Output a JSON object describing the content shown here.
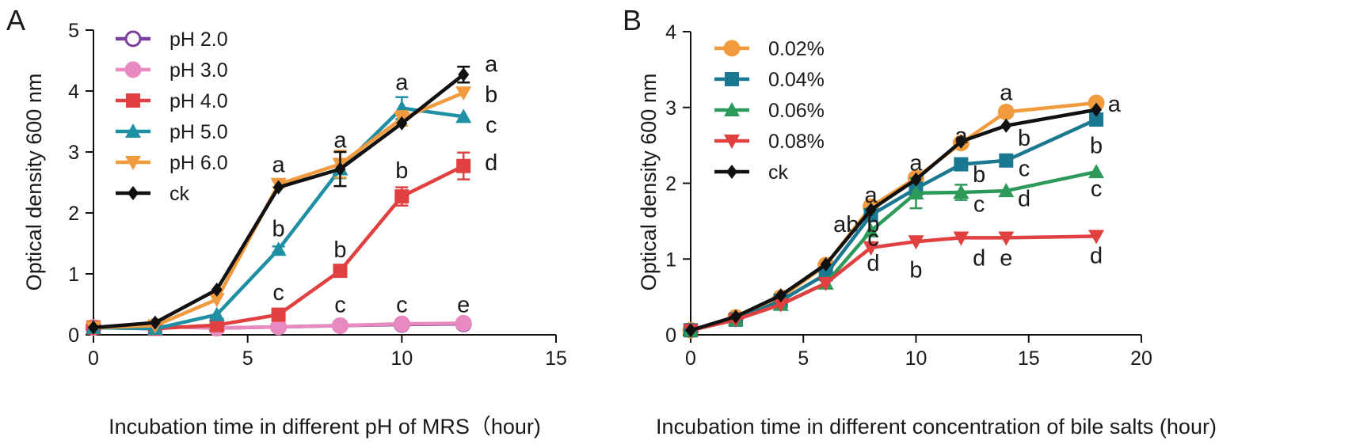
{
  "chart_data": [
    {
      "type": "line",
      "panel_label": "A",
      "xlabel": "Incubation time in different pH of MRS（hour)",
      "ylabel": "Optical density 600 nm",
      "xlim": [
        0,
        15
      ],
      "ylim": [
        0,
        5
      ],
      "xticks": [
        "0",
        "5",
        "10",
        "15"
      ],
      "yticks": [
        "0",
        "1",
        "2",
        "3",
        "4",
        "5"
      ],
      "x": [
        0,
        2,
        4,
        6,
        8,
        10,
        12
      ],
      "series": [
        {
          "name": "pH 2.0",
          "color": "#7b3f9e",
          "marker": "circle-open",
          "values": [
            0.12,
            0.14,
            0.11,
            0.13,
            0.15,
            0.17,
            0.18
          ],
          "errors": [
            0,
            0,
            0,
            0,
            0,
            0,
            0
          ]
        },
        {
          "name": "pH 3.0",
          "color": "#e889c0",
          "marker": "circle",
          "values": [
            0.12,
            0.14,
            0.11,
            0.13,
            0.15,
            0.18,
            0.19
          ],
          "errors": [
            0,
            0,
            0,
            0,
            0,
            0,
            0
          ]
        },
        {
          "name": "pH 4.0",
          "color": "#e04040",
          "marker": "square",
          "values": [
            0.12,
            0.1,
            0.16,
            0.33,
            1.05,
            2.27,
            2.77
          ],
          "errors": [
            0,
            0,
            0,
            0.05,
            0.05,
            0.15,
            0.22
          ]
        },
        {
          "name": "pH 5.0",
          "color": "#1f8fa3",
          "marker": "triangle-up",
          "values": [
            0.12,
            0.1,
            0.33,
            1.4,
            2.72,
            3.72,
            3.58
          ],
          "errors": [
            0,
            0,
            0,
            0.05,
            0.15,
            0.18,
            0
          ]
        },
        {
          "name": "pH 6.0",
          "color": "#f29b3e",
          "marker": "triangle-down",
          "values": [
            0.12,
            0.15,
            0.58,
            2.47,
            2.8,
            3.55,
            3.97
          ],
          "errors": [
            0,
            0,
            0,
            0.05,
            0.22,
            0.12,
            0
          ]
        },
        {
          "name": "ck",
          "color": "#111111",
          "marker": "diamond",
          "values": [
            0.12,
            0.2,
            0.74,
            2.42,
            2.72,
            3.47,
            4.27
          ],
          "errors": [
            0,
            0,
            0,
            0,
            0.28,
            0,
            0.13
          ]
        }
      ],
      "annotations": [
        {
          "text": "a",
          "x": 12.9,
          "y": 4.45
        },
        {
          "text": "b",
          "x": 12.9,
          "y": 3.95
        },
        {
          "text": "c",
          "x": 12.9,
          "y": 3.45
        },
        {
          "text": "d",
          "x": 12.9,
          "y": 2.83
        },
        {
          "text": "e",
          "x": 12.0,
          "y": 0.5
        },
        {
          "text": "a",
          "x": 10.0,
          "y": 4.15
        },
        {
          "text": "b",
          "x": 10.0,
          "y": 2.7
        },
        {
          "text": "c",
          "x": 10.0,
          "y": 0.5
        },
        {
          "text": "a",
          "x": 8.0,
          "y": 3.2
        },
        {
          "text": "b",
          "x": 8.0,
          "y": 1.4
        },
        {
          "text": "c",
          "x": 8.0,
          "y": 0.5
        },
        {
          "text": "a",
          "x": 6.0,
          "y": 2.8
        },
        {
          "text": "b",
          "x": 6.0,
          "y": 1.75
        },
        {
          "text": "c",
          "x": 6.0,
          "y": 0.7
        }
      ]
    },
    {
      "type": "line",
      "panel_label": "B",
      "xlabel": "Incubation time in different concentration of bile salts (hour)",
      "ylabel": "Optical density 600 nm",
      "xlim": [
        0,
        20
      ],
      "ylim": [
        0,
        4
      ],
      "xticks": [
        "0",
        "5",
        "10",
        "15",
        "20"
      ],
      "yticks": [
        "0",
        "1",
        "2",
        "3",
        "4"
      ],
      "x": [
        0,
        2,
        4,
        6,
        8,
        10,
        12,
        14,
        18
      ],
      "series": [
        {
          "name": "0.02%",
          "color": "#f29b3e",
          "marker": "circle",
          "values": [
            0.06,
            0.23,
            0.49,
            0.92,
            1.69,
            2.07,
            2.53,
            2.94,
            3.06
          ],
          "errors": [
            0,
            0,
            0,
            0,
            0,
            0,
            0,
            0,
            0
          ]
        },
        {
          "name": "0.04%",
          "color": "#1b7891",
          "marker": "square",
          "values": [
            0.06,
            0.2,
            0.45,
            0.8,
            1.58,
            1.93,
            2.25,
            2.3,
            2.84
          ],
          "errors": [
            0,
            0,
            0,
            0,
            0,
            0,
            0,
            0,
            0
          ]
        },
        {
          "name": "0.06%",
          "color": "#2e9a5a",
          "marker": "triangle-up",
          "values": [
            0.06,
            0.2,
            0.4,
            0.68,
            1.37,
            1.87,
            1.88,
            1.9,
            2.15
          ],
          "errors": [
            0,
            0,
            0,
            0,
            0,
            0.2,
            0.1,
            0,
            0
          ]
        },
        {
          "name": "0.08%",
          "color": "#e04040",
          "marker": "triangle-down",
          "values": [
            0.06,
            0.2,
            0.4,
            0.68,
            1.15,
            1.23,
            1.28,
            1.28,
            1.3
          ],
          "errors": [
            0,
            0,
            0,
            0,
            0,
            0,
            0,
            0,
            0
          ]
        },
        {
          "name": "ck",
          "color": "#111111",
          "marker": "diamond",
          "values": [
            0.06,
            0.24,
            0.52,
            0.93,
            1.65,
            2.05,
            2.55,
            2.76,
            2.97
          ],
          "errors": [
            0,
            0,
            0,
            0,
            0,
            0,
            0,
            0,
            0
          ]
        }
      ],
      "annotations": [
        {
          "text": "a",
          "x": 18.8,
          "y": 3.05
        },
        {
          "text": "b",
          "x": 18.0,
          "y": 2.5
        },
        {
          "text": "c",
          "x": 18.0,
          "y": 1.93
        },
        {
          "text": "d",
          "x": 18.0,
          "y": 1.05
        },
        {
          "text": "a",
          "x": 14.0,
          "y": 3.2
        },
        {
          "text": "b",
          "x": 14.8,
          "y": 2.6
        },
        {
          "text": "c",
          "x": 14.8,
          "y": 2.2
        },
        {
          "text": "d",
          "x": 14.8,
          "y": 1.8
        },
        {
          "text": "e",
          "x": 14.0,
          "y": 1.02
        },
        {
          "text": "a",
          "x": 12.0,
          "y": 2.63
        },
        {
          "text": "b",
          "x": 12.8,
          "y": 2.12
        },
        {
          "text": "c",
          "x": 12.8,
          "y": 1.73
        },
        {
          "text": "d",
          "x": 12.8,
          "y": 1.02
        },
        {
          "text": "a",
          "x": 10.0,
          "y": 2.27
        },
        {
          "text": "b",
          "x": 10.0,
          "y": 0.86
        },
        {
          "text": "a",
          "x": 8.0,
          "y": 1.85
        },
        {
          "text": "ab",
          "x": 6.9,
          "y": 1.46
        },
        {
          "text": "b",
          "x": 8.1,
          "y": 1.46
        },
        {
          "text": "c",
          "x": 8.1,
          "y": 1.28
        },
        {
          "text": "d",
          "x": 8.1,
          "y": 0.95
        }
      ]
    }
  ]
}
